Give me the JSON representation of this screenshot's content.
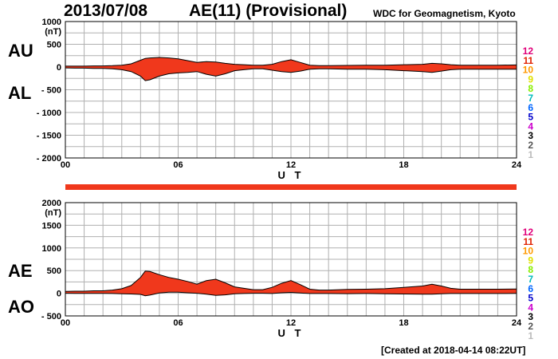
{
  "header": {
    "date": "2013/07/08",
    "title": "AE(11) (Provisional)",
    "org": "WDC for Geomagnetism, Kyoto"
  },
  "footer": {
    "created": "[Created at 2018-04-14 08:22UT]"
  },
  "station_counts": {
    "labels": [
      "12",
      "11",
      "10",
      "9",
      "8",
      "7",
      "6",
      "5",
      "4",
      "3",
      "2",
      "1"
    ],
    "colors": [
      "#e0007a",
      "#e02000",
      "#ff9900",
      "#e0e000",
      "#88ee00",
      "#00bbbb",
      "#0066ff",
      "#0000cc",
      "#cc00cc",
      "#000000",
      "#555555",
      "#bbbbbb"
    ]
  },
  "colors": {
    "fill": "#f0381c",
    "outline": "#000000",
    "grid": "#b0b0b0",
    "status_bar": "#f0381c"
  },
  "chart_data": [
    {
      "type": "area",
      "panel": "AU/AL",
      "labels": {
        "upper": "AU",
        "lower": "AL"
      },
      "xlabel": "U T",
      "xlim": [
        0,
        24
      ],
      "xticks": [
        "00",
        "06",
        "12",
        "18",
        "24"
      ],
      "ylim": [
        -2000,
        1000
      ],
      "yticks": [
        1000,
        500,
        0,
        -500,
        -1000,
        -1500,
        -2000
      ],
      "ytick_labels": [
        "1000",
        "500",
        "0",
        "- 500",
        "- 1000",
        "- 1500",
        "- 2000"
      ],
      "yunit": "(nT)",
      "x": [
        0,
        0.5,
        1,
        1.5,
        2,
        2.5,
        3,
        3.5,
        4,
        4.25,
        4.5,
        5,
        5.5,
        6,
        6.5,
        7,
        7.5,
        8,
        8.5,
        9,
        9.5,
        10,
        10.5,
        11,
        11.5,
        12,
        12.5,
        13,
        13.5,
        14,
        15,
        16,
        17,
        18,
        19,
        19.5,
        20,
        20.5,
        21,
        22,
        23,
        24
      ],
      "series": [
        {
          "name": "AU",
          "values": [
            20,
            20,
            20,
            25,
            25,
            30,
            40,
            70,
            150,
            190,
            200,
            210,
            200,
            180,
            140,
            100,
            120,
            110,
            80,
            60,
            50,
            40,
            40,
            60,
            120,
            160,
            100,
            40,
            30,
            30,
            35,
            40,
            40,
            50,
            60,
            80,
            70,
            50,
            40,
            40,
            40,
            45
          ]
        },
        {
          "name": "AL",
          "values": [
            -20,
            -25,
            -25,
            -30,
            -30,
            -40,
            -60,
            -100,
            -200,
            -300,
            -280,
            -200,
            -150,
            -130,
            -120,
            -100,
            -160,
            -200,
            -150,
            -80,
            -60,
            -40,
            -40,
            -70,
            -100,
            -120,
            -90,
            -50,
            -40,
            -40,
            -50,
            -50,
            -60,
            -80,
            -100,
            -120,
            -90,
            -60,
            -50,
            -50,
            -50,
            -50
          ]
        }
      ]
    },
    {
      "type": "area",
      "panel": "AE/AO",
      "labels": {
        "upper": "AE",
        "lower": "AO"
      },
      "xlabel": "U T",
      "xlim": [
        0,
        24
      ],
      "xticks": [
        "00",
        "06",
        "12",
        "18",
        "24"
      ],
      "ylim": [
        -500,
        2000
      ],
      "yticks": [
        2000,
        1500,
        1000,
        500,
        0,
        -500
      ],
      "ytick_labels": [
        "2000",
        "1500",
        "1000",
        "500",
        "0",
        "- 500"
      ],
      "yunit": "(nT)",
      "x": [
        0,
        0.5,
        1,
        1.5,
        2,
        2.5,
        3,
        3.5,
        4,
        4.25,
        4.5,
        5,
        5.5,
        6,
        6.5,
        7,
        7.5,
        8,
        8.5,
        9,
        9.5,
        10,
        10.5,
        11,
        11.5,
        12,
        12.5,
        13,
        13.5,
        14,
        15,
        16,
        17,
        18,
        19,
        19.5,
        20,
        20.5,
        21,
        22,
        23,
        24
      ],
      "series": [
        {
          "name": "AE",
          "values": [
            40,
            45,
            45,
            55,
            55,
            70,
            100,
            170,
            350,
            490,
            480,
            410,
            350,
            310,
            260,
            200,
            280,
            310,
            230,
            140,
            110,
            80,
            80,
            130,
            220,
            280,
            190,
            90,
            70,
            70,
            85,
            90,
            100,
            130,
            160,
            200,
            160,
            110,
            90,
            90,
            90,
            95
          ]
        },
        {
          "name": "AO",
          "values": [
            0,
            -3,
            -3,
            -3,
            -3,
            -5,
            -10,
            -15,
            -25,
            -55,
            -40,
            5,
            25,
            25,
            10,
            0,
            -20,
            -45,
            -35,
            -10,
            -5,
            0,
            0,
            -5,
            10,
            20,
            5,
            -5,
            -5,
            -5,
            -8,
            -5,
            -10,
            -15,
            -20,
            -20,
            -10,
            -5,
            -5,
            -5,
            -5,
            -3
          ]
        }
      ]
    }
  ]
}
